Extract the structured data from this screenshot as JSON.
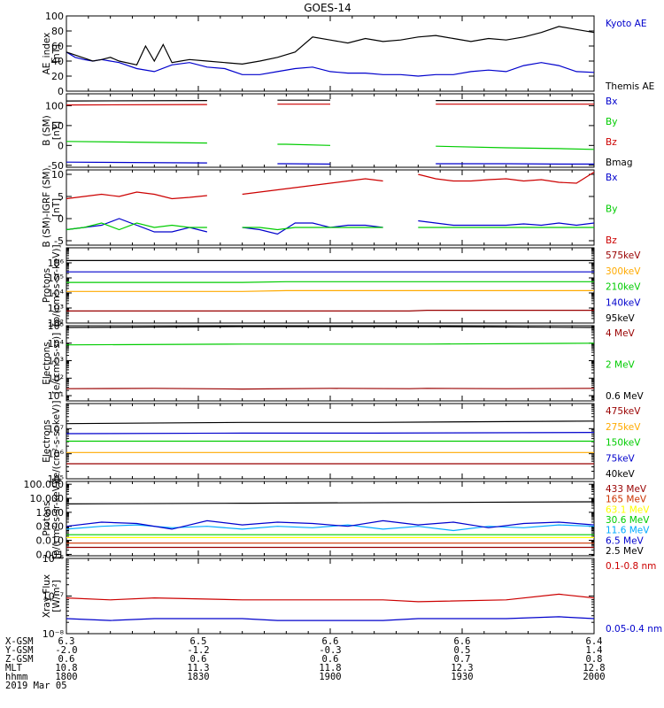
{
  "title": "GOES-14",
  "chart_data": [
    {
      "type": "line",
      "ylabel": [
        "AE_index",
        "[nT]"
      ],
      "scale": "linear",
      "ylim": [
        0,
        100
      ],
      "yticks": [
        "0",
        "20",
        "40",
        "60",
        "80",
        "100"
      ],
      "series": [
        {
          "name": "Kyoto AE",
          "color": "#0000cc",
          "x": [
            0,
            1,
            2,
            3,
            4,
            5,
            6,
            8,
            10,
            12,
            14,
            16,
            18,
            20,
            22,
            24,
            26,
            28,
            30,
            32,
            34,
            36,
            38,
            40,
            42,
            44,
            46,
            48,
            50,
            52,
            54,
            56,
            58,
            60
          ],
          "y": [
            52,
            45,
            42,
            40,
            42,
            40,
            38,
            30,
            26,
            35,
            38,
            32,
            30,
            22,
            22,
            26,
            30,
            32,
            26,
            24,
            24,
            22,
            22,
            20,
            22,
            22,
            26,
            28,
            26,
            34,
            38,
            34,
            26,
            25
          ]
        },
        {
          "name": "Themis AE",
          "color": "#000000",
          "x": [
            0,
            1,
            2,
            3,
            4,
            5,
            6,
            8,
            9,
            10,
            11,
            12,
            13,
            14,
            16,
            18,
            20,
            22,
            24,
            26,
            28,
            30,
            32,
            34,
            36,
            38,
            40,
            42,
            44,
            46,
            48,
            50,
            52,
            54,
            56,
            58,
            60
          ],
          "y": [
            52,
            48,
            44,
            40,
            42,
            45,
            40,
            35,
            60,
            40,
            62,
            38,
            40,
            42,
            40,
            38,
            36,
            40,
            45,
            52,
            72,
            68,
            64,
            70,
            66,
            68,
            72,
            74,
            70,
            66,
            70,
            68,
            72,
            78,
            86,
            82,
            78
          ]
        }
      ]
    },
    {
      "type": "line",
      "ylabel": [
        "B (SM)",
        "[nT]"
      ],
      "scale": "linear",
      "ylim": [
        -55,
        130
      ],
      "yticks": [
        "-50",
        "0",
        "50",
        "100"
      ],
      "series": [
        {
          "name": "Bx",
          "color": "#0000cc",
          "x": [
            0,
            16,
            20,
            24,
            25,
            30,
            38,
            42,
            50,
            56,
            60
          ],
          "y": [
            -42,
            -44,
            null,
            -46,
            -46,
            -47,
            null,
            -46,
            -46,
            -47,
            -47
          ]
        },
        {
          "name": "By",
          "color": "#00cc00",
          "x": [
            0,
            16,
            20,
            24,
            25,
            30,
            38,
            42,
            50,
            56,
            60
          ],
          "y": [
            10,
            6,
            null,
            3,
            3,
            0,
            null,
            -2,
            -6,
            -8,
            -10
          ]
        },
        {
          "name": "Bz",
          "color": "#cc0000",
          "x": [
            0,
            16,
            20,
            24,
            25,
            30,
            38,
            42,
            50,
            56,
            60
          ],
          "y": [
            102,
            103,
            null,
            104,
            104,
            104,
            null,
            104,
            104,
            104,
            104
          ]
        },
        {
          "name": "Bmag",
          "color": "#000000",
          "x": [
            0,
            16,
            20,
            24,
            25,
            30,
            38,
            42,
            50,
            56,
            60
          ],
          "y": [
            112,
            113,
            null,
            114,
            114,
            114,
            null,
            113,
            113,
            113,
            113
          ]
        }
      ]
    },
    {
      "type": "line",
      "ylabel": [
        "B (SM)-IGRF (SM)",
        "[nT]"
      ],
      "scale": "linear",
      "ylim": [
        -6,
        11
      ],
      "yticks": [
        "-5",
        "0",
        "5",
        "10"
      ],
      "series": [
        {
          "name": "Bx",
          "color": "#0000cc",
          "x": [
            0,
            2,
            4,
            6,
            8,
            10,
            12,
            14,
            16,
            18,
            20,
            22,
            24,
            26,
            28,
            30,
            32,
            34,
            36,
            38,
            40,
            42,
            44,
            46,
            48,
            50,
            52,
            54,
            56,
            58,
            60
          ],
          "y": [
            -2.5,
            -2.0,
            -1.5,
            0.0,
            -1.5,
            -3.0,
            -3.0,
            -2.0,
            -3.0,
            null,
            -2.0,
            -2.5,
            -3.5,
            -1.0,
            -1.0,
            -2.0,
            -1.5,
            -1.5,
            -2.0,
            null,
            -0.5,
            -1.0,
            -1.5,
            -1.5,
            -1.5,
            -1.5,
            -1.2,
            -1.5,
            -1.0,
            -1.5,
            -1.0
          ]
        },
        {
          "name": "By",
          "color": "#00cc00",
          "x": [
            0,
            2,
            4,
            6,
            8,
            10,
            12,
            14,
            16,
            18,
            20,
            22,
            24,
            26,
            28,
            30,
            32,
            34,
            36,
            38,
            40,
            42,
            44,
            46,
            48,
            50,
            52,
            54,
            56,
            58,
            60
          ],
          "y": [
            -2.5,
            -2.0,
            -1.0,
            -2.5,
            -1.0,
            -2.0,
            -1.5,
            -2.0,
            -2.0,
            null,
            -2.0,
            -2.0,
            -2.5,
            -2.0,
            -2.0,
            -2.0,
            -2.0,
            -2.0,
            -2.0,
            null,
            -2.0,
            -2.0,
            -2.0,
            -2.0,
            -2.0,
            -2.0,
            -2.0,
            -2.0,
            -2.0,
            -2.0,
            -2.0
          ]
        },
        {
          "name": "Bz",
          "color": "#cc0000",
          "x": [
            0,
            2,
            4,
            6,
            8,
            10,
            12,
            14,
            16,
            18,
            20,
            22,
            24,
            26,
            28,
            30,
            32,
            34,
            36,
            38,
            40,
            42,
            44,
            46,
            48,
            50,
            52,
            54,
            56,
            58,
            60
          ],
          "y": [
            4.5,
            5.0,
            5.5,
            5.0,
            6.0,
            5.5,
            4.5,
            4.8,
            5.2,
            null,
            5.5,
            6.0,
            6.5,
            7.0,
            7.5,
            8.0,
            8.5,
            9.0,
            8.5,
            null,
            10.0,
            9.0,
            8.5,
            8.5,
            8.8,
            9.0,
            8.5,
            8.8,
            8.2,
            8.0,
            10.5
          ]
        }
      ]
    },
    {
      "type": "line",
      "ylabel": [
        "Protons",
        "[p/(cm²-s-sr-keV)]"
      ],
      "scale": "log",
      "ylim": [
        1,
        6
      ],
      "yticks": [
        "10²",
        "10³",
        "10⁴",
        "10⁵",
        "10⁶"
      ],
      "series": [
        {
          "name": "575keV",
          "color": "#990000",
          "x": [
            0,
            20,
            25,
            39,
            41,
            60
          ],
          "y": [
            1.8,
            1.8,
            1.8,
            1.8,
            1.85,
            1.85
          ]
        },
        {
          "name": "300keV",
          "color": "#ffaa00",
          "x": [
            0,
            20,
            25,
            39,
            41,
            60
          ],
          "y": [
            3.1,
            3.1,
            3.15,
            3.15,
            3.15,
            3.15
          ]
        },
        {
          "name": "210keV",
          "color": "#00cc00",
          "x": [
            0,
            20,
            25,
            39,
            41,
            60
          ],
          "y": [
            3.7,
            3.7,
            3.75,
            3.75,
            3.75,
            3.75
          ]
        },
        {
          "name": "140keV",
          "color": "#0000cc",
          "x": [
            0,
            20,
            25,
            39,
            41,
            60
          ],
          "y": [
            4.4,
            4.4,
            4.4,
            4.4,
            4.4,
            4.4
          ]
        },
        {
          "name": "95keV",
          "color": "#000000",
          "x": [
            0,
            20,
            25,
            39,
            41,
            60
          ],
          "y": [
            5.15,
            5.15,
            5.15,
            5.15,
            5.15,
            5.15
          ]
        }
      ]
    },
    {
      "type": "line",
      "ylabel": [
        "Electrons",
        "[e/(cm²-s-sr)]"
      ],
      "scale": "log",
      "ylim": [
        0.7,
        5
      ],
      "yticks": [
        "10¹",
        "10²",
        "10³",
        "10⁴",
        "10⁵"
      ],
      "series": [
        {
          "name": "4 MeV",
          "color": "#990000",
          "x": [
            0,
            10,
            20,
            30,
            39,
            41,
            50,
            60
          ],
          "y": [
            1.4,
            1.42,
            1.38,
            1.42,
            1.4,
            1.42,
            1.4,
            1.42
          ]
        },
        {
          "name": "2 MeV",
          "color": "#00cc00",
          "x": [
            0,
            20,
            39,
            41,
            60
          ],
          "y": [
            3.9,
            3.95,
            3.95,
            3.95,
            4.0
          ]
        },
        {
          "name": "0.6 MeV",
          "color": "#000000",
          "x": [
            0,
            20,
            39,
            41,
            60
          ],
          "y": [
            4.9,
            4.95,
            4.95,
            4.95,
            4.9
          ]
        }
      ]
    },
    {
      "type": "line",
      "ylabel": [
        "Electrons",
        "[e/(cm²-s-sr-keV)]"
      ],
      "scale": "log",
      "ylim": [
        4,
        7
      ],
      "yticks": [
        "10⁵",
        "10⁶",
        "10⁷"
      ],
      "series": [
        {
          "name": "475keV",
          "color": "#990000",
          "x": [
            0,
            20,
            21,
            33,
            35,
            60
          ],
          "y": [
            4.6,
            4.6,
            4.6,
            4.6,
            4.6,
            4.6
          ]
        },
        {
          "name": "275keV",
          "color": "#ffaa00",
          "x": [
            0,
            20,
            21,
            33,
            35,
            60
          ],
          "y": [
            5.05,
            5.05,
            5.05,
            5.05,
            5.05,
            5.05
          ]
        },
        {
          "name": "150keV",
          "color": "#00cc00",
          "x": [
            0,
            20,
            21,
            33,
            35,
            60
          ],
          "y": [
            5.5,
            5.5,
            5.5,
            5.5,
            5.5,
            5.5
          ]
        },
        {
          "name": "75keV",
          "color": "#0000cc",
          "x": [
            0,
            20,
            21,
            33,
            35,
            60
          ],
          "y": [
            5.8,
            5.82,
            5.82,
            5.82,
            5.82,
            5.85
          ]
        },
        {
          "name": "40keV",
          "color": "#000000",
          "x": [
            0,
            20,
            21,
            33,
            35,
            60
          ],
          "y": [
            6.2,
            6.25,
            6.25,
            6.25,
            6.25,
            6.3
          ]
        }
      ]
    },
    {
      "type": "line",
      "ylabel": [
        "Protons",
        "[p/(cm²-s-sr-keV)]"
      ],
      "scale": "log",
      "ylim": [
        -3.1,
        2.2
      ],
      "yticks": [
        "0.001",
        "0.010",
        "0.100",
        "1.000",
        "10.000",
        "100.000"
      ],
      "series": [
        {
          "name": "433 MeV",
          "color": "#990000",
          "x": [
            0,
            20,
            21,
            39,
            41,
            60
          ],
          "y": [
            -2.5,
            -2.5,
            -2.5,
            -2.5,
            -2.5,
            -2.5
          ]
        },
        {
          "name": "165 MeV",
          "color": "#cc3300",
          "x": [
            0,
            20,
            21,
            39,
            41,
            60
          ],
          "y": [
            -2.2,
            -2.2,
            -2.2,
            -2.2,
            -2.2,
            -2.2
          ]
        },
        {
          "name": "63.1 MeV",
          "color": "#ffff00",
          "x": [
            0,
            20,
            21,
            39,
            41,
            60
          ],
          "y": [
            -1.8,
            -1.8,
            -1.8,
            -1.8,
            -1.8,
            -1.8
          ]
        },
        {
          "name": "30.6 MeV",
          "color": "#00cc00",
          "x": [
            0,
            20,
            21,
            39,
            41,
            60
          ],
          "y": [
            -1.6,
            -1.6,
            -1.6,
            -1.6,
            -1.6,
            -1.6
          ]
        },
        {
          "name": "11.6 MeV",
          "color": "#00aaff",
          "x": [
            0,
            4,
            8,
            12,
            16,
            20,
            24,
            28,
            32,
            36,
            40,
            44,
            48,
            52,
            56,
            60
          ],
          "y": [
            -1.2,
            -1.0,
            -0.9,
            -1.1,
            -1.0,
            -1.2,
            -1.0,
            -1.1,
            -0.9,
            -1.2,
            -1.0,
            -1.3,
            -1.0,
            -1.1,
            -0.9,
            -1.0
          ]
        },
        {
          "name": "6.5 MeV",
          "color": "#0000cc",
          "x": [
            0,
            4,
            8,
            12,
            16,
            20,
            24,
            28,
            32,
            36,
            40,
            44,
            48,
            52,
            56,
            60
          ],
          "y": [
            -1.0,
            -0.7,
            -0.8,
            -1.2,
            -0.6,
            -0.9,
            -0.7,
            -0.8,
            -1.0,
            -0.6,
            -0.9,
            -0.7,
            -1.1,
            -0.8,
            -0.7,
            -0.9
          ]
        },
        {
          "name": "2.5 MeV",
          "color": "#000000",
          "x": [
            0,
            20,
            21,
            39,
            41,
            60
          ],
          "y": [
            0.6,
            0.65,
            0.65,
            0.7,
            0.7,
            0.75
          ]
        }
      ]
    },
    {
      "type": "line",
      "ylabel": [
        "Xray Flux",
        "[W/m²]"
      ],
      "scale": "log",
      "ylim": [
        -8,
        -6
      ],
      "yticks": [
        "10⁻⁸",
        "10⁻⁷",
        "10⁻⁶"
      ],
      "series": [
        {
          "name": "0.1-0.8 nm",
          "color": "#cc0000",
          "x": [
            0,
            5,
            10,
            20,
            24,
            36,
            40,
            50,
            56,
            60
          ],
          "y": [
            -7.05,
            -7.1,
            -7.05,
            -7.1,
            -7.1,
            -7.1,
            -7.15,
            -7.1,
            -6.95,
            -7.05
          ]
        },
        {
          "name": "0.05-0.4 nm",
          "color": "#0000cc",
          "x": [
            0,
            5,
            10,
            20,
            24,
            36,
            40,
            50,
            56,
            60
          ],
          "y": [
            -7.6,
            -7.65,
            -7.6,
            -7.6,
            -7.65,
            -7.65,
            -7.6,
            -7.6,
            -7.55,
            -7.6
          ]
        }
      ]
    }
  ],
  "xaxis": {
    "xlim": [
      0,
      60
    ],
    "ticks_x": [
      0,
      15,
      30,
      45,
      60
    ],
    "rows": [
      {
        "label": "X-GSM",
        "values": [
          "6.3",
          "6.5",
          "6.6",
          "6.6",
          "6.4"
        ]
      },
      {
        "label": "Y-GSM",
        "values": [
          "-2.0",
          "-1.2",
          "-0.3",
          "0.5",
          "1.4"
        ]
      },
      {
        "label": "Z-GSM",
        "values": [
          "0.6",
          "0.6",
          "0.6",
          "0.7",
          "0.8"
        ]
      },
      {
        "label": "MLT",
        "values": [
          "10.8",
          "11.3",
          "11.8",
          "12.3",
          "12.8"
        ]
      },
      {
        "label": "hhmm",
        "values": [
          "1800",
          "1830",
          "1900",
          "1930",
          "2000"
        ]
      }
    ],
    "date": "2019 Mar 05"
  }
}
